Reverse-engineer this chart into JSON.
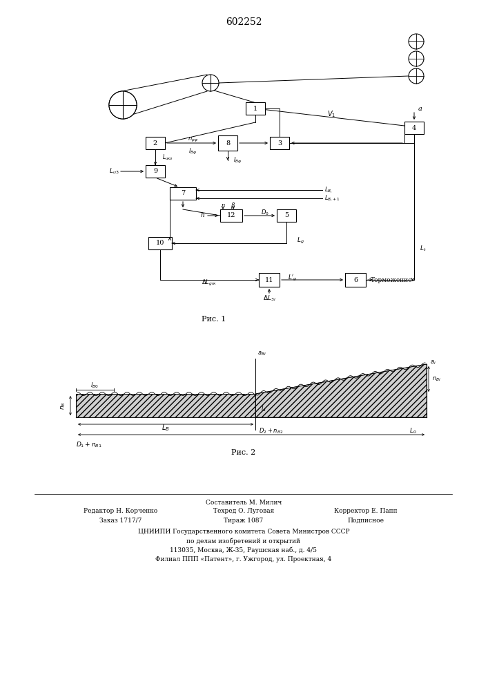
{
  "title": "602252",
  "title_fontsize": 10,
  "background_color": "#ffffff",
  "line_color": "#000000",
  "fig1_label": "Рис. 1",
  "fig2_label": "Рис. 2",
  "footer_col1": [
    "Редактор Н. Корченко",
    "Заказ 1717/7"
  ],
  "footer_col2_header": "Составитель М. Милич",
  "footer_col2": [
    "Техред О. Луговая",
    "Тираж 1087"
  ],
  "footer_col3": [
    "Корректор Е. Папп",
    "Подписное"
  ],
  "footer_bottom": [
    "ЦНИИПИ Государственного комитета Совета Министров СССР",
    "по делам изобретений и открытий",
    "113035, Москва, Ж-35, Раушская наб., д. 4/5",
    "Филиал ППП «Патент», г. Ужгород, ул. Проектная, 4"
  ]
}
